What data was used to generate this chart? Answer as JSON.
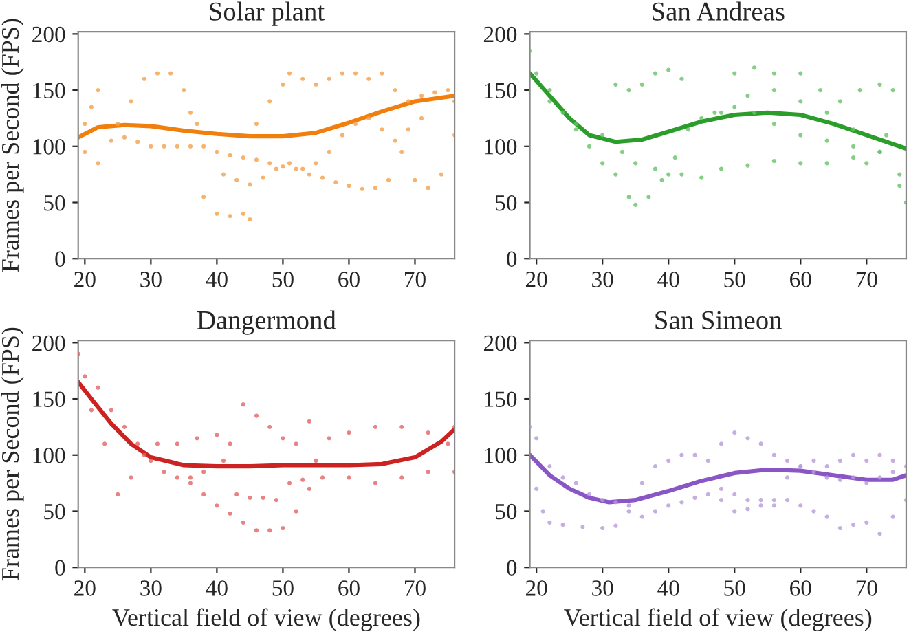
{
  "chart_data": [
    {
      "type": "scatter",
      "title": "Solar plant",
      "ylabel": "Frames per Second (FPS)",
      "xlim": [
        19,
        76
      ],
      "ylim": [
        0,
        202
      ],
      "xticks": [
        20,
        30,
        40,
        50,
        60,
        70
      ],
      "yticks": [
        0,
        50,
        100,
        150,
        200
      ],
      "grid": false,
      "legend": false,
      "series": [
        {
          "type": "scatter",
          "marker": "circle",
          "color": "#f5a04a",
          "x": [
            20,
            21,
            22,
            25,
            27,
            29,
            31,
            33,
            35,
            36,
            37,
            20,
            22,
            24,
            26,
            28,
            30,
            32,
            34,
            36,
            38,
            40,
            42,
            44,
            46,
            48,
            50,
            52,
            54,
            56,
            58,
            60,
            62,
            64,
            66,
            68,
            70,
            72,
            74,
            76,
            41,
            43,
            45,
            47,
            49,
            51,
            53,
            55,
            57,
            59,
            61,
            63,
            65,
            67,
            69,
            71,
            38,
            40,
            42,
            44,
            45,
            46,
            48,
            50,
            51,
            53,
            55,
            57,
            59,
            61,
            63,
            65,
            67,
            69,
            71,
            73,
            75,
            76
          ],
          "values": [
            120,
            135,
            150,
            120,
            140,
            160,
            165,
            165,
            150,
            130,
            120,
            95,
            85,
            105,
            108,
            104,
            100,
            100,
            100,
            100,
            100,
            95,
            92,
            90,
            88,
            85,
            82,
            80,
            75,
            72,
            68,
            65,
            62,
            63,
            70,
            95,
            70,
            63,
            75,
            110,
            75,
            70,
            66,
            72,
            80,
            85,
            80,
            85,
            95,
            110,
            120,
            125,
            115,
            105,
            115,
            125,
            55,
            40,
            38,
            40,
            35,
            120,
            140,
            155,
            165,
            160,
            155,
            160,
            165,
            165,
            160,
            165,
            150,
            140,
            145,
            148,
            150,
            140
          ]
        },
        {
          "type": "line",
          "marker": "none",
          "color": "#f07f0e",
          "x": [
            19,
            22,
            26,
            30,
            35,
            40,
            45,
            50,
            55,
            60,
            65,
            70,
            76
          ],
          "values": [
            108,
            117,
            119,
            118,
            114,
            111,
            109,
            109,
            112,
            121,
            131,
            140,
            145
          ]
        }
      ]
    },
    {
      "type": "scatter",
      "title": "San Andreas",
      "xlim": [
        19,
        76
      ],
      "ylim": [
        0,
        202
      ],
      "xticks": [
        20,
        30,
        40,
        50,
        60,
        70
      ],
      "yticks": [
        0,
        50,
        100,
        150,
        200
      ],
      "grid": false,
      "legend": false,
      "series": [
        {
          "type": "scatter",
          "marker": "circle",
          "color": "#66c266",
          "x": [
            19,
            20,
            22,
            24,
            26,
            28,
            30,
            32,
            34,
            35,
            37,
            39,
            41,
            43,
            45,
            47,
            50,
            53,
            56,
            60,
            64,
            68,
            72,
            75,
            22,
            26,
            30,
            33,
            35,
            38,
            40,
            42,
            45,
            48,
            52,
            56,
            60,
            64,
            68,
            72,
            75,
            76,
            32,
            34,
            36,
            38,
            40,
            42,
            50,
            53,
            56,
            60,
            63,
            66,
            69,
            72,
            74,
            48,
            52,
            56,
            60,
            64,
            68,
            70,
            73
          ],
          "values": [
            185,
            165,
            150,
            130,
            115,
            100,
            85,
            75,
            55,
            48,
            55,
            70,
            90,
            115,
            125,
            130,
            135,
            130,
            120,
            110,
            105,
            100,
            95,
            75,
            140,
            120,
            110,
            95,
            85,
            80,
            75,
            75,
            72,
            80,
            83,
            87,
            85,
            85,
            90,
            95,
            65,
            50,
            155,
            150,
            155,
            165,
            168,
            160,
            165,
            170,
            165,
            165,
            150,
            140,
            150,
            155,
            150,
            130,
            145,
            150,
            140,
            130,
            115,
            85,
            110
          ]
        },
        {
          "type": "line",
          "marker": "none",
          "color": "#2a9d2a",
          "x": [
            19,
            22,
            25,
            28,
            32,
            36,
            40,
            45,
            50,
            55,
            60,
            65,
            70,
            76
          ],
          "values": [
            165,
            145,
            125,
            110,
            104,
            106,
            113,
            122,
            128,
            130,
            128,
            120,
            110,
            98
          ]
        }
      ]
    },
    {
      "type": "scatter",
      "title": "Dangermond",
      "ylabel": "Frames per Second (FPS)",
      "xlabel": "Vertical field of view (degrees)",
      "xlim": [
        19,
        76
      ],
      "ylim": [
        0,
        202
      ],
      "xticks": [
        20,
        30,
        40,
        50,
        60,
        70
      ],
      "yticks": [
        0,
        50,
        100,
        150,
        200
      ],
      "grid": false,
      "legend": false,
      "series": [
        {
          "type": "scatter",
          "marker": "circle",
          "color": "#e36464",
          "x": [
            19,
            20,
            22,
            24,
            26,
            28,
            30,
            32,
            34,
            36,
            38,
            40,
            42,
            44,
            46,
            48,
            50,
            52,
            54,
            56,
            60,
            64,
            68,
            72,
            76,
            21,
            23,
            25,
            27,
            29,
            31,
            34,
            37,
            40,
            42,
            44,
            46,
            48,
            50,
            52,
            54,
            36,
            38,
            41,
            43,
            45,
            47,
            49,
            51,
            53,
            55,
            57,
            60,
            64,
            68,
            72,
            75,
            76
          ],
          "values": [
            190,
            170,
            160,
            140,
            125,
            110,
            95,
            85,
            80,
            75,
            65,
            55,
            48,
            40,
            33,
            33,
            35,
            50,
            70,
            80,
            80,
            75,
            80,
            85,
            85,
            140,
            110,
            65,
            80,
            100,
            110,
            110,
            115,
            118,
            110,
            145,
            135,
            125,
            115,
            110,
            130,
            80,
            85,
            95,
            65,
            62,
            62,
            60,
            75,
            78,
            95,
            115,
            120,
            125,
            125,
            120,
            110,
            125
          ]
        },
        {
          "type": "line",
          "marker": "none",
          "color": "#cc2222",
          "x": [
            19,
            21,
            24,
            27,
            30,
            35,
            40,
            45,
            50,
            55,
            60,
            65,
            70,
            74,
            76
          ],
          "values": [
            165,
            150,
            128,
            110,
            98,
            91,
            90,
            90,
            91,
            91,
            91,
            92,
            98,
            112,
            123
          ]
        }
      ]
    },
    {
      "type": "scatter",
      "title": "San Simeon",
      "xlabel": "Vertical field of view (degrees)",
      "xlim": [
        19,
        76
      ],
      "ylim": [
        0,
        202
      ],
      "xticks": [
        20,
        30,
        40,
        50,
        60,
        70
      ],
      "yticks": [
        0,
        50,
        100,
        150,
        200
      ],
      "grid": false,
      "legend": false,
      "series": [
        {
          "type": "scatter",
          "marker": "circle",
          "color": "#b79ad8",
          "x": [
            19,
            20,
            22,
            24,
            26,
            28,
            30,
            32,
            34,
            36,
            38,
            40,
            42,
            44,
            46,
            48,
            50,
            52,
            54,
            56,
            58,
            60,
            62,
            64,
            66,
            68,
            70,
            72,
            74,
            76,
            20,
            21,
            22,
            24,
            27,
            30,
            32,
            34,
            36,
            38,
            40,
            42,
            44,
            46,
            48,
            50,
            52,
            54,
            56,
            58,
            60,
            62,
            64,
            66,
            68,
            70,
            72,
            74,
            48,
            50,
            52,
            54,
            56,
            58,
            60,
            62,
            64,
            66,
            68,
            70,
            72,
            74,
            76
          ],
          "values": [
            125,
            115,
            90,
            80,
            75,
            65,
            60,
            58,
            50,
            45,
            50,
            55,
            58,
            62,
            65,
            70,
            65,
            60,
            55,
            60,
            80,
            90,
            85,
            80,
            78,
            80,
            75,
            80,
            85,
            90,
            70,
            50,
            40,
            38,
            36,
            35,
            37,
            55,
            75,
            90,
            95,
            100,
            100,
            95,
            110,
            120,
            115,
            110,
            100,
            95,
            90,
            95,
            90,
            95,
            100,
            95,
            100,
            95,
            60,
            50,
            52,
            60,
            55,
            60,
            55,
            50,
            45,
            35,
            38,
            40,
            30,
            45,
            60
          ]
        },
        {
          "type": "line",
          "marker": "none",
          "color": "#8a56c6",
          "x": [
            19,
            22,
            25,
            28,
            31,
            35,
            40,
            45,
            50,
            55,
            60,
            65,
            70,
            74,
            76
          ],
          "values": [
            100,
            82,
            70,
            62,
            58,
            60,
            68,
            77,
            84,
            87,
            86,
            82,
            78,
            78,
            82
          ]
        }
      ]
    }
  ]
}
